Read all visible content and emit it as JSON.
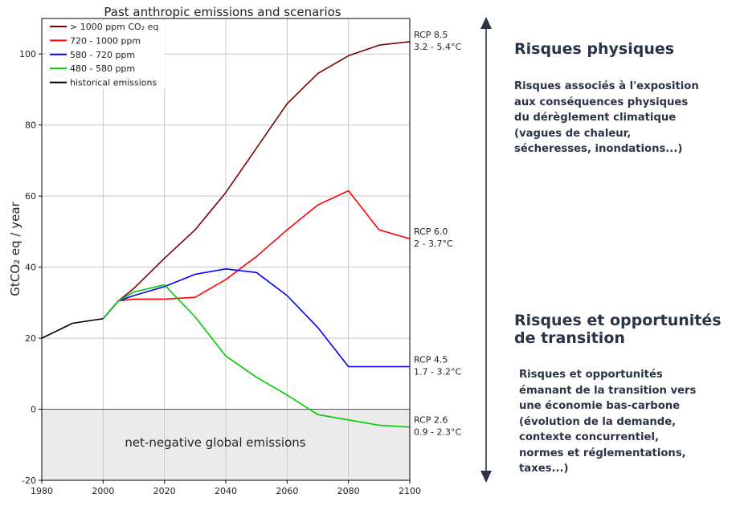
{
  "chart_data": {
    "type": "line",
    "title": "Past anthropic emissions and scenarios",
    "ylabel": "GtCO₂ eq / year",
    "xlim": [
      1980,
      2100
    ],
    "ylim": [
      -20,
      110
    ],
    "x_ticks": [
      1980,
      2000,
      2020,
      2040,
      2060,
      2080,
      2100
    ],
    "y_ticks": [
      -20,
      0,
      20,
      40,
      60,
      80,
      100
    ],
    "grid": true,
    "legend_position": "top-left",
    "negative_region_label": "net-negative global emissions",
    "series": [
      {
        "name": "> 1000 ppm CO₂ eq",
        "color": "#7a0000",
        "scenario": "RCP 8.5",
        "warming": "3.2 - 5.4°C",
        "x": [
          2000,
          2005,
          2010,
          2020,
          2030,
          2040,
          2050,
          2060,
          2070,
          2080,
          2090,
          2100
        ],
        "y": [
          25.5,
          30.5,
          34,
          42.5,
          50.5,
          61,
          73.5,
          86,
          94.5,
          99.5,
          102.5,
          103.5
        ]
      },
      {
        "name": "720 - 1000 ppm",
        "color": "#ff0000",
        "scenario": "RCP 6.0",
        "warming": "2 - 3.7°C",
        "x": [
          2000,
          2005,
          2010,
          2020,
          2030,
          2040,
          2050,
          2060,
          2070,
          2080,
          2090,
          2100
        ],
        "y": [
          25.5,
          30.5,
          31,
          31,
          31.5,
          36.5,
          43,
          50.5,
          57.5,
          61.5,
          50.5,
          48
        ]
      },
      {
        "name": "580 - 720 ppm",
        "color": "#0000ff",
        "scenario": "RCP 4.5",
        "warming": "1.7 - 3.2°C",
        "x": [
          2000,
          2005,
          2010,
          2020,
          2030,
          2040,
          2050,
          2060,
          2070,
          2080,
          2100
        ],
        "y": [
          25.5,
          30.5,
          32,
          34.5,
          38,
          39.5,
          38.5,
          32,
          23,
          12,
          12
        ]
      },
      {
        "name": "480 - 580 ppm",
        "color": "#00cc00",
        "scenario": "RCP 2.6",
        "warming": "0.9 - 2.3°C",
        "x": [
          2000,
          2005,
          2010,
          2020,
          2030,
          2040,
          2050,
          2060,
          2070,
          2080,
          2090,
          2100
        ],
        "y": [
          25.5,
          30.5,
          33,
          35,
          26,
          15,
          9,
          4,
          -1.5,
          -3,
          -4.5,
          -5
        ]
      },
      {
        "name": "historical emissions",
        "color": "#000000",
        "x": [
          1980,
          1990,
          2000
        ],
        "y": [
          20,
          24.2,
          25.5
        ]
      }
    ]
  },
  "panel": {
    "physical_heading": "Risques physiques",
    "physical_body": [
      "Risques associés à l'exposition",
      "aux conséquences physiques",
      "du dérèglement climatique",
      "(vagues de chaleur,",
      "sécheresses, inondations...)"
    ],
    "transition_heading": [
      "Risques et opportunités",
      "de transition"
    ],
    "transition_body": [
      "Risques et opportunités",
      "émanant de la transition vers",
      "une économie bas-carbone",
      "(évolution de la demande,",
      "contexte concurrentiel,",
      "normes et réglementations,",
      "taxes...)"
    ],
    "arrow_color": "#2b3447"
  }
}
